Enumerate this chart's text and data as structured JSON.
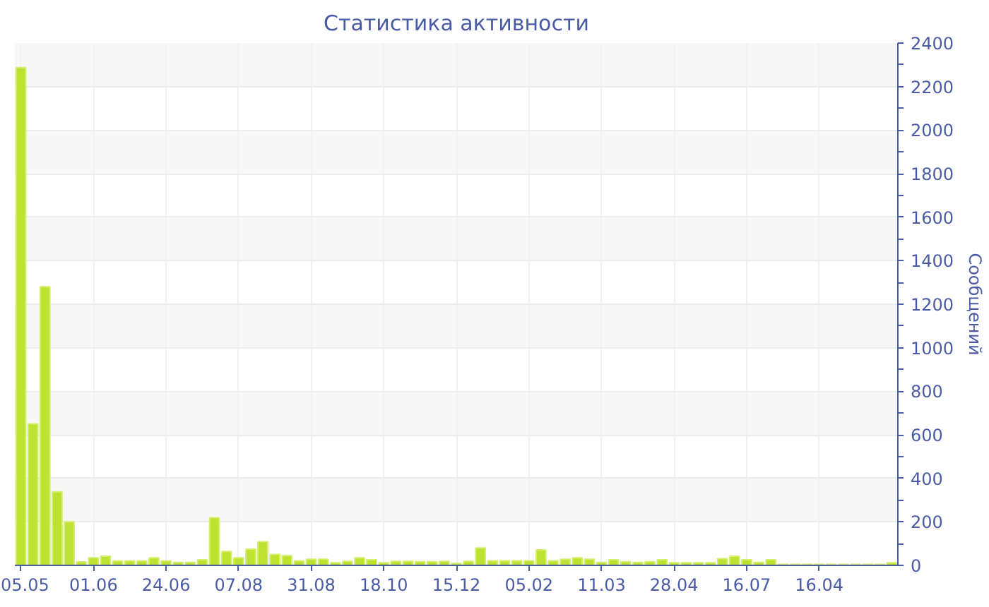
{
  "chart_data": {
    "type": "bar",
    "title": "Статистика активности",
    "ylabel": "Сообщений",
    "categories": [
      "05.05",
      null,
      null,
      null,
      null,
      null,
      "01.06",
      null,
      null,
      null,
      null,
      null,
      "24.06",
      null,
      null,
      null,
      null,
      null,
      "07.08",
      null,
      null,
      null,
      null,
      null,
      "31.08",
      null,
      null,
      null,
      null,
      null,
      "18.10",
      null,
      null,
      null,
      null,
      null,
      "15.12",
      null,
      null,
      null,
      null,
      null,
      "05.02",
      null,
      null,
      null,
      null,
      null,
      "11.03",
      null,
      null,
      null,
      null,
      null,
      "28.04",
      null,
      null,
      null,
      null,
      null,
      "16.07",
      null,
      null,
      null,
      null,
      null,
      "16.04",
      null,
      null,
      null,
      null,
      null,
      null
    ],
    "values": [
      2287,
      650,
      1280,
      338,
      200,
      16,
      35,
      42,
      20,
      20,
      20,
      35,
      20,
      14,
      14,
      26,
      219,
      64,
      35,
      75,
      109,
      50,
      45,
      20,
      28,
      28,
      12,
      19,
      35,
      26,
      12,
      19,
      19,
      17,
      17,
      19,
      9,
      19,
      80,
      21,
      21,
      21,
      21,
      71,
      21,
      28,
      35,
      28,
      14,
      26,
      17,
      14,
      17,
      26,
      12,
      12,
      12,
      12,
      31,
      42,
      26,
      14,
      26,
      5,
      5,
      5,
      5,
      5,
      5,
      5,
      5,
      5,
      12
    ],
    "color": "#bde22f",
    "ylim": [
      0,
      2400
    ],
    "yticks": [
      0,
      200,
      400,
      600,
      800,
      1000,
      1200,
      1400,
      1600,
      1800,
      2000,
      2200,
      2400
    ],
    "grid": true
  }
}
